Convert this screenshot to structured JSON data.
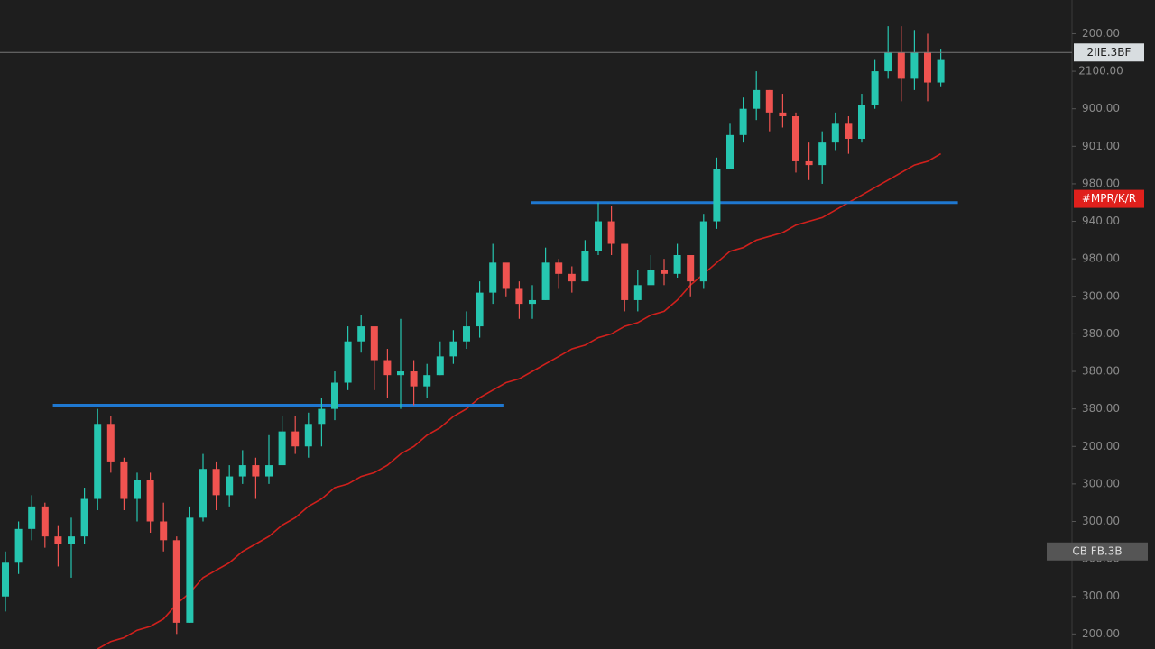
{
  "chart_data": {
    "type": "candlestick",
    "up_color": "#26c6b0",
    "down_color": "#ef5350",
    "ma_color": "#d0201c",
    "level_color": "#1f78d1",
    "ylim": [
      -0.4,
      16.9
    ],
    "yticks": [
      {
        "value": 16,
        "label": "200.00"
      },
      {
        "value": 15,
        "label": "2100.00"
      },
      {
        "value": 14,
        "label": "900.00"
      },
      {
        "value": 13,
        "label": "901.00"
      },
      {
        "value": 12,
        "label": "980.00"
      },
      {
        "value": 11,
        "label": "940.00"
      },
      {
        "value": 10,
        "label": "980.00"
      },
      {
        "value": 9,
        "label": "300.00"
      },
      {
        "value": 8,
        "label": "380.00"
      },
      {
        "value": 7,
        "label": "380.00"
      },
      {
        "value": 6,
        "label": "380.00"
      },
      {
        "value": 5,
        "label": "200.00"
      },
      {
        "value": 4,
        "label": "300.00"
      },
      {
        "value": 3,
        "label": "300.00"
      },
      {
        "value": 2,
        "label": "300.00"
      },
      {
        "value": 1,
        "label": "300.00"
      },
      {
        "value": 0,
        "label": "200.00"
      }
    ],
    "open": [
      1.0,
      1.9,
      2.8,
      3.4,
      2.6,
      2.4,
      2.6,
      3.6,
      5.6,
      4.6,
      3.6,
      4.1,
      3.0,
      2.5,
      0.3,
      3.1,
      4.4,
      3.7,
      4.2,
      4.5,
      4.2,
      4.5,
      5.4,
      5.0,
      5.6,
      6.0,
      6.7,
      7.8,
      8.2,
      7.3,
      6.9,
      7.0,
      6.6,
      6.9,
      7.4,
      7.8,
      8.2,
      9.1,
      9.9,
      9.2,
      8.8,
      8.9,
      9.9,
      9.6,
      9.4,
      10.2,
      11.0,
      10.4,
      8.9,
      9.3,
      9.7,
      9.6,
      10.1,
      9.4,
      11.0,
      12.4,
      13.3,
      14.0,
      14.5,
      13.9,
      13.8,
      12.6,
      12.5,
      13.1,
      13.6,
      13.2,
      14.1,
      15.0,
      15.5,
      14.8,
      15.5,
      14.7
    ],
    "high": [
      2.2,
      3.0,
      3.7,
      3.5,
      2.9,
      3.1,
      3.9,
      6.0,
      5.8,
      4.7,
      4.3,
      4.3,
      3.5,
      2.6,
      3.4,
      4.8,
      4.6,
      4.5,
      4.9,
      4.7,
      5.3,
      5.8,
      5.8,
      5.9,
      6.3,
      7.0,
      8.2,
      8.5,
      8.1,
      7.6,
      8.4,
      7.3,
      7.2,
      7.8,
      8.1,
      8.6,
      9.4,
      10.4,
      9.8,
      9.4,
      9.3,
      10.3,
      10.0,
      9.8,
      10.5,
      11.5,
      11.4,
      10.4,
      9.7,
      10.1,
      10.0,
      10.4,
      10.0,
      11.2,
      12.7,
      13.6,
      14.3,
      15.0,
      14.5,
      14.4,
      13.9,
      13.1,
      13.4,
      13.9,
      13.8,
      14.4,
      15.3,
      16.2,
      16.2,
      16.1,
      16.0,
      15.6
    ],
    "low": [
      0.6,
      1.6,
      2.5,
      2.3,
      1.8,
      1.5,
      2.4,
      3.3,
      4.3,
      3.3,
      3.0,
      2.7,
      2.2,
      0.0,
      0.3,
      3.0,
      3.3,
      3.4,
      4.0,
      3.6,
      4.0,
      4.5,
      4.8,
      4.7,
      5.0,
      5.7,
      6.5,
      7.5,
      6.5,
      6.3,
      6.0,
      6.1,
      6.3,
      6.9,
      7.2,
      7.6,
      7.9,
      8.8,
      9.0,
      8.4,
      8.4,
      8.9,
      9.2,
      9.1,
      9.4,
      10.1,
      10.1,
      8.6,
      8.6,
      9.4,
      9.3,
      9.5,
      9.0,
      9.2,
      10.8,
      12.4,
      13.1,
      13.7,
      13.4,
      13.5,
      12.3,
      12.1,
      12.0,
      12.9,
      12.8,
      13.1,
      14.0,
      14.8,
      14.2,
      14.5,
      14.2,
      14.6
    ],
    "close": [
      1.9,
      2.8,
      3.4,
      2.6,
      2.4,
      2.6,
      3.6,
      5.6,
      4.6,
      3.6,
      4.1,
      3.0,
      2.5,
      0.3,
      3.1,
      4.4,
      3.7,
      4.2,
      4.5,
      4.2,
      4.5,
      5.4,
      5.0,
      5.6,
      6.0,
      6.7,
      7.8,
      8.2,
      7.3,
      6.9,
      7.0,
      6.6,
      6.9,
      7.4,
      7.8,
      8.2,
      9.1,
      9.9,
      9.2,
      8.8,
      8.9,
      9.9,
      9.6,
      9.4,
      10.2,
      11.0,
      10.4,
      8.9,
      9.3,
      9.7,
      9.6,
      10.1,
      9.4,
      11.0,
      12.4,
      13.3,
      14.0,
      14.5,
      13.9,
      13.8,
      12.6,
      12.5,
      13.1,
      13.6,
      13.2,
      14.1,
      15.0,
      15.5,
      14.8,
      15.5,
      14.7,
      15.3
    ],
    "ma": [
      null,
      null,
      null,
      null,
      null,
      null,
      null,
      -0.4,
      -0.2,
      -0.1,
      0.1,
      0.2,
      0.4,
      0.8,
      1.1,
      1.5,
      1.7,
      1.9,
      2.2,
      2.4,
      2.6,
      2.9,
      3.1,
      3.4,
      3.6,
      3.9,
      4.0,
      4.2,
      4.3,
      4.5,
      4.8,
      5.0,
      5.3,
      5.5,
      5.8,
      6.0,
      6.3,
      6.5,
      6.7,
      6.8,
      7.0,
      7.2,
      7.4,
      7.6,
      7.7,
      7.9,
      8.0,
      8.2,
      8.3,
      8.5,
      8.6,
      8.9,
      9.3,
      9.6,
      9.9,
      10.2,
      10.3,
      10.5,
      10.6,
      10.7,
      10.9,
      11.0,
      11.1,
      11.3,
      11.5,
      11.7,
      11.9,
      12.1,
      12.3,
      12.5,
      12.6,
      12.8
    ],
    "levels": [
      {
        "value": 6.1,
        "from": 3.6,
        "to": 37.8
      },
      {
        "value": 11.5,
        "from": 39.9,
        "to": 72.3
      }
    ],
    "price_tags": [
      {
        "label": "2IIE.3BF",
        "value": 15.5,
        "color": "#d8dde0",
        "text_color": "#1e1e1e"
      },
      {
        "label": "#MPR/K/R",
        "value": 11.6,
        "color": "#e0201c",
        "text_color": "#ffffff"
      },
      {
        "label": "CB  FB.3B",
        "value": 2.2,
        "color": "#555555",
        "text_color": "#dddddd"
      }
    ]
  }
}
